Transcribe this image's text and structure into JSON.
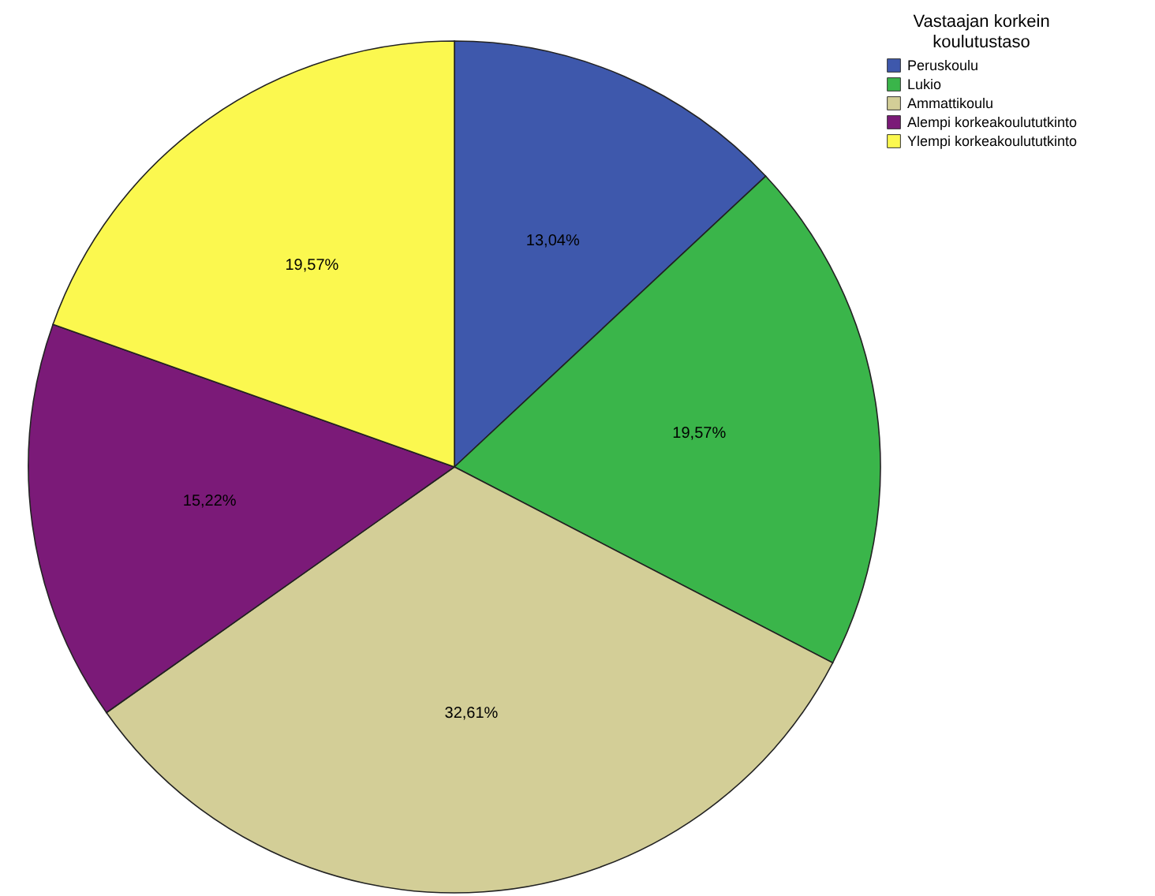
{
  "chart_data": {
    "type": "pie",
    "legend_title": "Vastaajan korkein koulutustaso",
    "legend": "top right",
    "categories": [
      "Peruskoulu",
      "Lukio",
      "Ammattikoulu",
      "Alempi korkeakoulututkinto",
      "Ylempi korkeakoulututkinto"
    ],
    "values": [
      13.04,
      19.57,
      32.61,
      15.22,
      19.57
    ],
    "value_labels": [
      "13,04%",
      "19,57%",
      "32,61%",
      "15,22%",
      "19,57%"
    ],
    "colors": [
      "#3e58ac",
      "#3ab54a",
      "#d3ce97",
      "#7b1a78",
      "#fbf84f"
    ]
  }
}
